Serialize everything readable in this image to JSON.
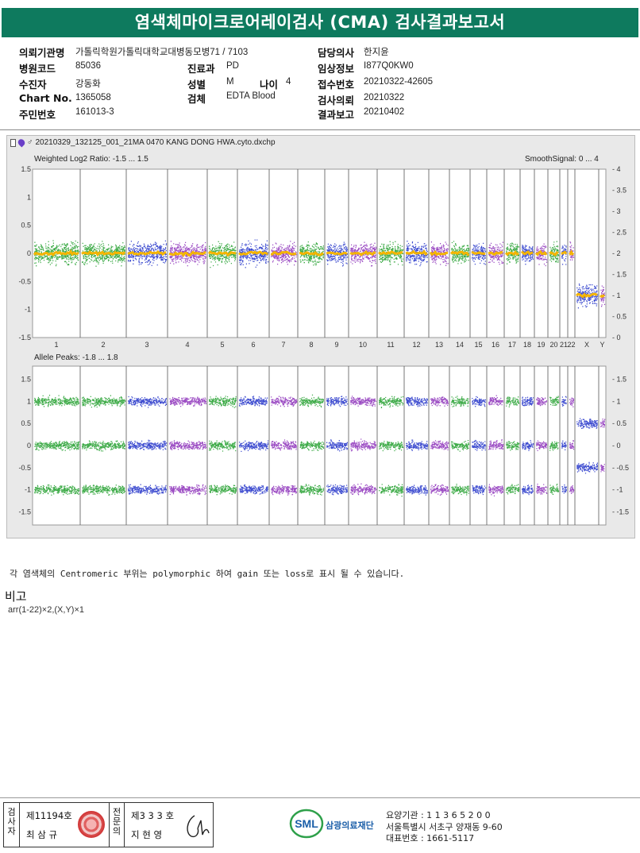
{
  "report": {
    "title": "염색체마이크로어레이검사 (CMA) 검사결과보고서"
  },
  "info": {
    "institution_label": "의뢰기관명",
    "institution_value": "가톨릭학원가톨릭대학교대병동모병71 / 7103",
    "hospital_code_label": "병원코드",
    "hospital_code_value": "85036",
    "patient_label": "수진자",
    "patient_value": "강동화",
    "chart_no_label": "Chart No.",
    "chart_no_value": "1365058",
    "resident_no_label": "주민번호",
    "resident_no_value": "161013-3",
    "department_label": "진료과",
    "department_value": "PD",
    "sex_label": "성별",
    "sex_value": "M",
    "age_label": "나이",
    "age_value": "4",
    "specimen_label": "검체",
    "specimen_value": "EDTA Blood",
    "doctor_label": "담당의사",
    "doctor_value": "한지윤",
    "clinical_label": "임상정보",
    "clinical_value": "I877Q0KW0",
    "receipt_label": "접수번호",
    "receipt_value": "20210322-42605",
    "request_label": "검사의뢰",
    "request_value": "20210322",
    "result_label": "결과보고",
    "result_value": "20210402"
  },
  "plot": {
    "file_name": "20210329_132125_001_21MA 0470 KANG DONG HWA.cyto.dxchp",
    "top_label": "Weighted Log2 Ratio: -1.5 ... 1.5",
    "top_right_label": "SmoothSignal: 0 ... 4",
    "bottom_label": "Allele Peaks: -1.8 ... 1.8",
    "top_left_ticks": [
      "1.5",
      "1",
      "0.5",
      "0",
      "-0.5",
      "-1",
      "-1.5"
    ],
    "top_right_ticks": [
      "4",
      "3.5",
      "3",
      "2.5",
      "2",
      "1.5",
      "1",
      "0.5",
      "0"
    ],
    "bottom_ticks": [
      "1.5",
      "1",
      "0.5",
      "0",
      "-0.5",
      "-1",
      "-1.5"
    ],
    "chromosomes": [
      "1",
      "2",
      "3",
      "4",
      "5",
      "6",
      "7",
      "8",
      "9",
      "10",
      "11",
      "12",
      "13",
      "14",
      "15",
      "16",
      "17",
      "18",
      "19",
      "20",
      "21",
      "22",
      "X",
      "Y"
    ],
    "colors": {
      "green": "#1f9e2a",
      "blue": "#1f2fc8",
      "purple": "#8a2bb8",
      "smooth": "#f4b400"
    }
  },
  "note": "각 염색체의 Centromeric 부위는 polymorphic 하여 gain 또는 loss로 표시 될 수 있습니다.",
  "remarks": {
    "title": "비고",
    "text": "arr(1-22)×2,(X,Y)×1"
  },
  "footer": {
    "examiner_label": "검사자",
    "examiner_no": "제11194호",
    "examiner_name": "최 삼 규",
    "reviewer_label": "전문의",
    "reviewer_no": "제3 3 3 호",
    "reviewer_name": "지 현 영",
    "logo_text": "삼광의료재단",
    "org_code": "요양기관 : 1 1 3 6 5 2 0 0",
    "org_address": "서울특별시 서초구 양재동 9-60",
    "org_phone": "대표번호 : 1661-5117"
  }
}
